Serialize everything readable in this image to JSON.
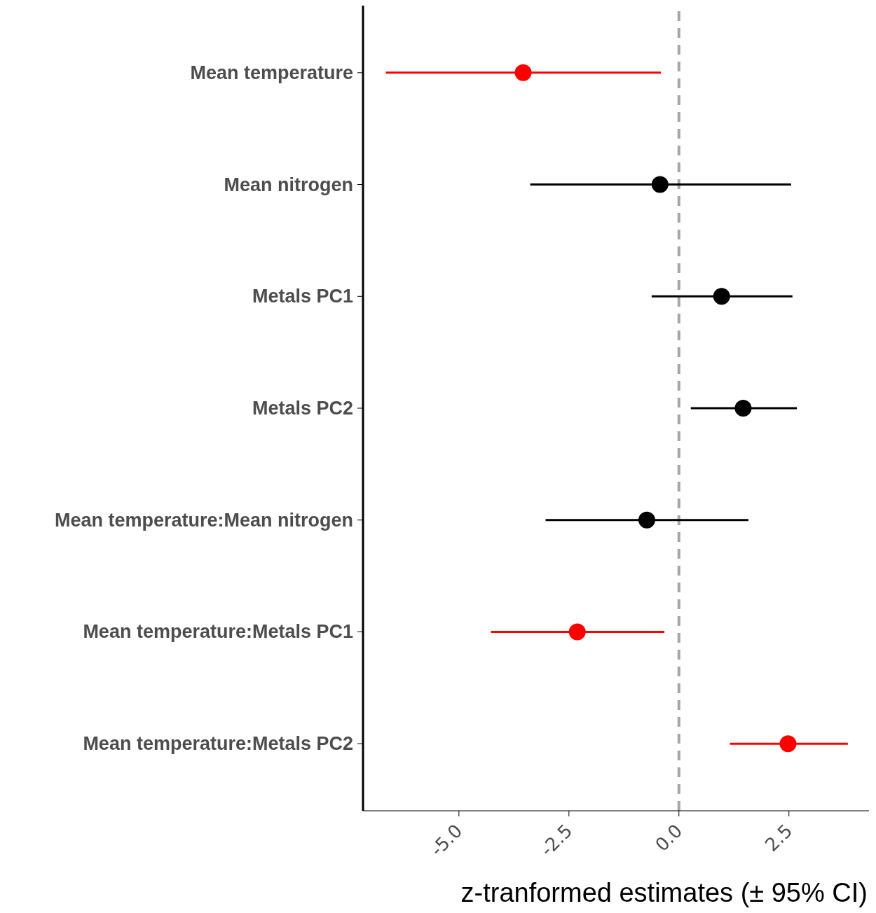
{
  "chart_data": {
    "type": "scatter",
    "orientation": "horizontal",
    "categories": [
      "Mean temperature",
      "Mean nitrogen",
      "Metals PC1",
      "Metals PC2",
      "Mean temperature:Mean nitrogen",
      "Mean temperature:Metals PC1",
      "Mean temperature:Metals PC2"
    ],
    "values": [
      -3.54,
      -0.43,
      0.97,
      1.46,
      -0.73,
      -2.31,
      2.48
    ],
    "errors": [
      [
        -6.66,
        -0.41
      ],
      [
        -3.38,
        2.55
      ],
      [
        -0.62,
        2.58
      ],
      [
        0.27,
        2.68
      ],
      [
        -3.03,
        1.58
      ],
      [
        -4.27,
        -0.33
      ],
      [
        1.16,
        3.84
      ]
    ],
    "colors": [
      "#ff0000",
      "#000000",
      "#000000",
      "#000000",
      "#000000",
      "#ff0000",
      "#ff0000"
    ],
    "xlabel": "z-tranformed estimates (± 95% CI)",
    "xlim": [
      -7.18,
      4.32
    ],
    "xticks": [
      {
        "value": -5,
        "label": "-5.0"
      },
      {
        "value": -2.5,
        "label": "-2.5"
      },
      {
        "value": 0,
        "label": "0.0"
      },
      {
        "value": 2.5,
        "label": "2.5"
      }
    ],
    "ref_lines": [
      {
        "axis": "x",
        "value": 0,
        "color": "#a6a6a6",
        "line_style": "dashed"
      }
    ],
    "marker": "circle"
  }
}
